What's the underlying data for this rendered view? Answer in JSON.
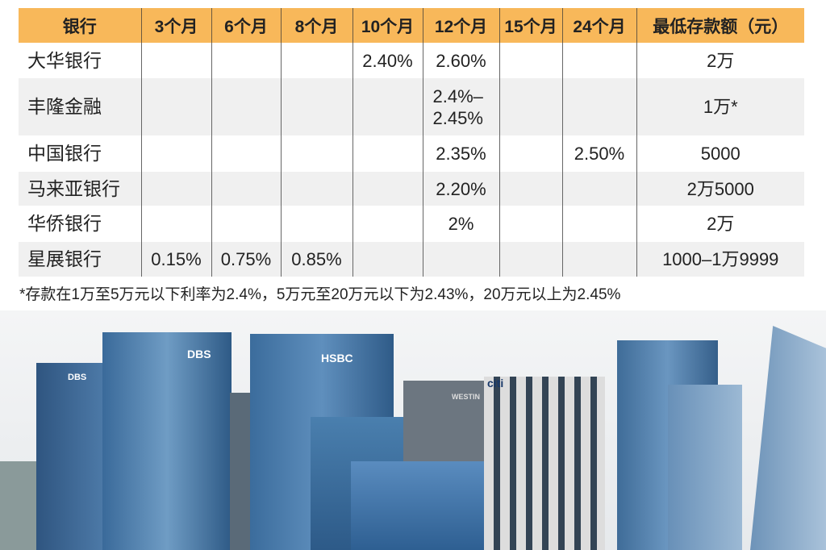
{
  "table": {
    "headers": [
      "银行",
      "3个月",
      "6个月",
      "8个月",
      "10个月",
      "12个月",
      "15个月",
      "24个月",
      "最低存款额（元）"
    ],
    "rows": [
      {
        "bank": "大华银行",
        "m3": "",
        "m6": "",
        "m8": "",
        "m10": "2.40%",
        "m12": "2.60%",
        "m15": "",
        "m24": "",
        "min": "2万"
      },
      {
        "bank": "丰隆金融",
        "m3": "",
        "m6": "",
        "m8": "",
        "m10": "",
        "m12": "2.4%–2.45%",
        "m15": "",
        "m24": "",
        "min": "1万*"
      },
      {
        "bank": "中国银行",
        "m3": "",
        "m6": "",
        "m8": "",
        "m10": "",
        "m12": "2.35%",
        "m15": "",
        "m24": "2.50%",
        "min": "5000"
      },
      {
        "bank": "马来亚银行",
        "m3": "",
        "m6": "",
        "m8": "",
        "m10": "",
        "m12": "2.20%",
        "m15": "",
        "m24": "",
        "min": "2万5000"
      },
      {
        "bank": "华侨银行",
        "m3": "",
        "m6": "",
        "m8": "",
        "m10": "",
        "m12": "2%",
        "m15": "",
        "m24": "",
        "min": "2万"
      },
      {
        "bank": "星展银行",
        "m3": "0.15%",
        "m6": "0.75%",
        "m8": "0.85%",
        "m10": "",
        "m12": "",
        "m15": "",
        "m24": "",
        "min": "1000–1万9999"
      }
    ]
  },
  "note": "*存款在1万至5万元以下利率为2.4%，5万元至20万元以下为2.43%，20万元以上为2.45%",
  "photo": {
    "logos": [
      "DBS",
      "DBS",
      "HSBC",
      "citi",
      "WESTIN"
    ],
    "colors": {
      "header": "#f8b85a",
      "alt_row": "#f0f0f0",
      "glass": "#3f6f9e"
    }
  }
}
